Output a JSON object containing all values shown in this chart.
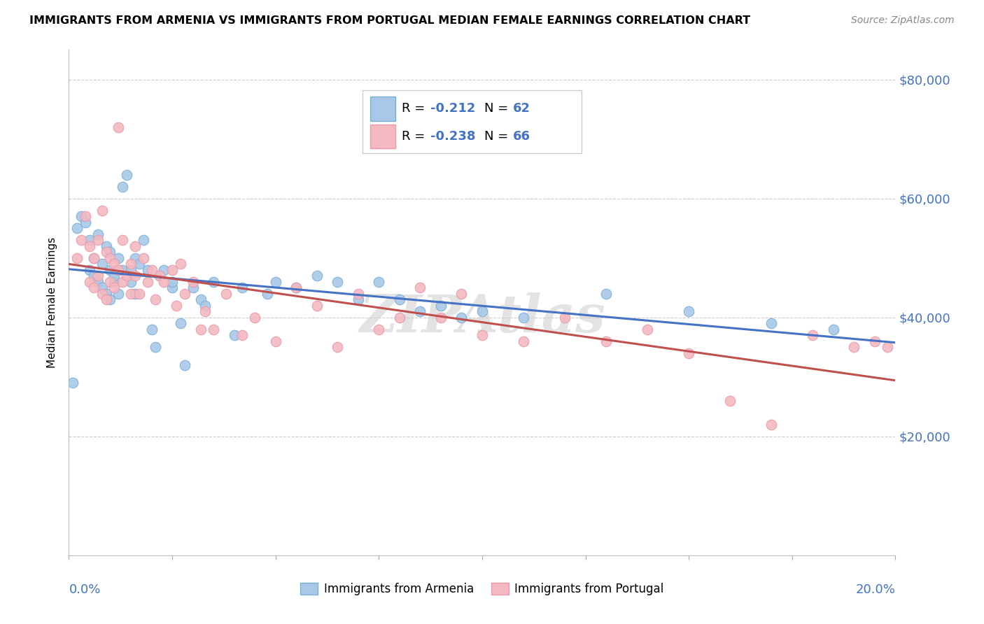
{
  "title": "IMMIGRANTS FROM ARMENIA VS IMMIGRANTS FROM PORTUGAL MEDIAN FEMALE EARNINGS CORRELATION CHART",
  "source": "Source: ZipAtlas.com",
  "ylabel": "Median Female Earnings",
  "yticks": [
    0,
    20000,
    40000,
    60000,
    80000
  ],
  "ytick_labels": [
    "",
    "$20,000",
    "$40,000",
    "$60,000",
    "$80,000"
  ],
  "xlim": [
    0.0,
    0.2
  ],
  "ylim": [
    0,
    85000
  ],
  "armenia_color": "#a8c8e8",
  "portugal_color": "#f4b8c0",
  "armenia_edge_color": "#7bafd4",
  "portugal_edge_color": "#e89aaa",
  "trendline_armenia_color": "#4472c4",
  "trendline_portugal_color": "#c0504d",
  "armenia_R": "-0.212",
  "armenia_N": "62",
  "portugal_R": "-0.238",
  "portugal_N": "66",
  "legend_text_color": "#4472c4",
  "watermark": "ZIPAtlas",
  "armenia_points_x": [
    0.001,
    0.002,
    0.003,
    0.004,
    0.005,
    0.005,
    0.006,
    0.006,
    0.007,
    0.007,
    0.008,
    0.008,
    0.009,
    0.009,
    0.01,
    0.01,
    0.01,
    0.011,
    0.011,
    0.012,
    0.012,
    0.013,
    0.013,
    0.014,
    0.015,
    0.015,
    0.016,
    0.016,
    0.017,
    0.018,
    0.019,
    0.02,
    0.021,
    0.022,
    0.023,
    0.025,
    0.025,
    0.027,
    0.028,
    0.03,
    0.032,
    0.033,
    0.035,
    0.04,
    0.042,
    0.048,
    0.05,
    0.055,
    0.06,
    0.065,
    0.07,
    0.075,
    0.08,
    0.085,
    0.09,
    0.095,
    0.1,
    0.11,
    0.13,
    0.15,
    0.17,
    0.185
  ],
  "armenia_points_y": [
    29000,
    55000,
    57000,
    56000,
    48000,
    53000,
    47000,
    50000,
    46000,
    54000,
    45000,
    49000,
    44000,
    52000,
    48000,
    43000,
    51000,
    46000,
    47000,
    50000,
    44000,
    48000,
    62000,
    64000,
    46000,
    48000,
    44000,
    50000,
    49000,
    53000,
    48000,
    38000,
    35000,
    47000,
    48000,
    45000,
    46000,
    39000,
    32000,
    45000,
    43000,
    42000,
    46000,
    37000,
    45000,
    44000,
    46000,
    45000,
    47000,
    46000,
    43000,
    46000,
    43000,
    41000,
    42000,
    40000,
    41000,
    40000,
    44000,
    41000,
    39000,
    38000
  ],
  "portugal_points_x": [
    0.002,
    0.003,
    0.004,
    0.005,
    0.005,
    0.006,
    0.006,
    0.007,
    0.007,
    0.008,
    0.008,
    0.009,
    0.009,
    0.01,
    0.01,
    0.011,
    0.011,
    0.012,
    0.012,
    0.013,
    0.013,
    0.014,
    0.015,
    0.015,
    0.016,
    0.016,
    0.017,
    0.018,
    0.019,
    0.02,
    0.021,
    0.022,
    0.023,
    0.025,
    0.026,
    0.027,
    0.028,
    0.03,
    0.032,
    0.033,
    0.035,
    0.038,
    0.042,
    0.045,
    0.05,
    0.055,
    0.06,
    0.065,
    0.07,
    0.075,
    0.08,
    0.085,
    0.09,
    0.095,
    0.1,
    0.11,
    0.12,
    0.13,
    0.14,
    0.15,
    0.16,
    0.17,
    0.18,
    0.19,
    0.195,
    0.198
  ],
  "portugal_points_y": [
    50000,
    53000,
    57000,
    52000,
    46000,
    50000,
    45000,
    53000,
    47000,
    58000,
    44000,
    51000,
    43000,
    50000,
    46000,
    49000,
    45000,
    48000,
    72000,
    53000,
    46000,
    47000,
    49000,
    44000,
    52000,
    47000,
    44000,
    50000,
    46000,
    48000,
    43000,
    47000,
    46000,
    48000,
    42000,
    49000,
    44000,
    46000,
    38000,
    41000,
    38000,
    44000,
    37000,
    40000,
    36000,
    45000,
    42000,
    35000,
    44000,
    38000,
    40000,
    45000,
    40000,
    44000,
    37000,
    36000,
    40000,
    36000,
    38000,
    34000,
    26000,
    22000,
    37000,
    35000,
    36000,
    35000
  ]
}
